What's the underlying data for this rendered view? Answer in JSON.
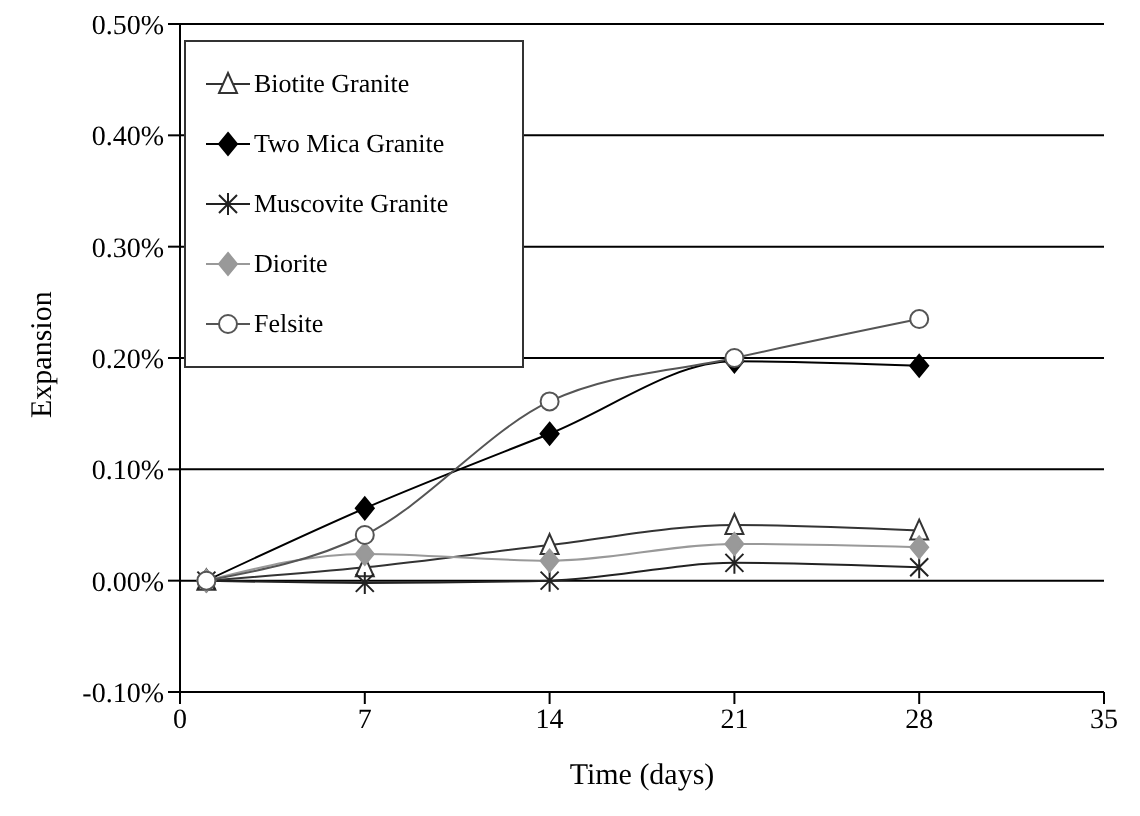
{
  "chart_data": {
    "type": "line",
    "xlabel": "Time (days)",
    "ylabel": "Expansion",
    "x": [
      1,
      7,
      14,
      21,
      28
    ],
    "series": [
      {
        "name": "Biotite Granite",
        "color": "#333333",
        "marker": "triangle",
        "values": [
          0,
          0.012,
          0.032,
          0.05,
          0.045
        ]
      },
      {
        "name": "Two Mica Granite",
        "color": "#000000",
        "marker": "diamond",
        "values": [
          0,
          0.065,
          0.132,
          0.197,
          0.193
        ]
      },
      {
        "name": "Muscovite Granite",
        "color": "#222222",
        "marker": "cross",
        "values": [
          0,
          -0.002,
          0,
          0.016,
          0.012
        ]
      },
      {
        "name": "Diorite",
        "color": "#999999",
        "marker": "diamond",
        "values": [
          0,
          0.024,
          0.018,
          0.033,
          0.03
        ]
      },
      {
        "name": "Felsite",
        "color": "#555555",
        "marker": "circle",
        "values": [
          0,
          0.041,
          0.161,
          0.2,
          0.235
        ]
      }
    ],
    "xlim": [
      0,
      35
    ],
    "xticks": [
      0,
      7,
      14,
      21,
      28,
      35
    ],
    "ylim": [
      -0.1,
      0.5
    ],
    "yticks": [
      {
        "value": -0.1,
        "label": "-0.10%"
      },
      {
        "value": 0,
        "label": "0.00%"
      },
      {
        "value": 0.1,
        "label": "0.10%"
      },
      {
        "value": 0.2,
        "label": "0.20%"
      },
      {
        "value": 0.3,
        "label": "0.30%"
      },
      {
        "value": 0.4,
        "label": "0.40%"
      },
      {
        "value": 0.5,
        "label": "0.50%"
      }
    ],
    "grid": "y",
    "legend": "top left"
  }
}
